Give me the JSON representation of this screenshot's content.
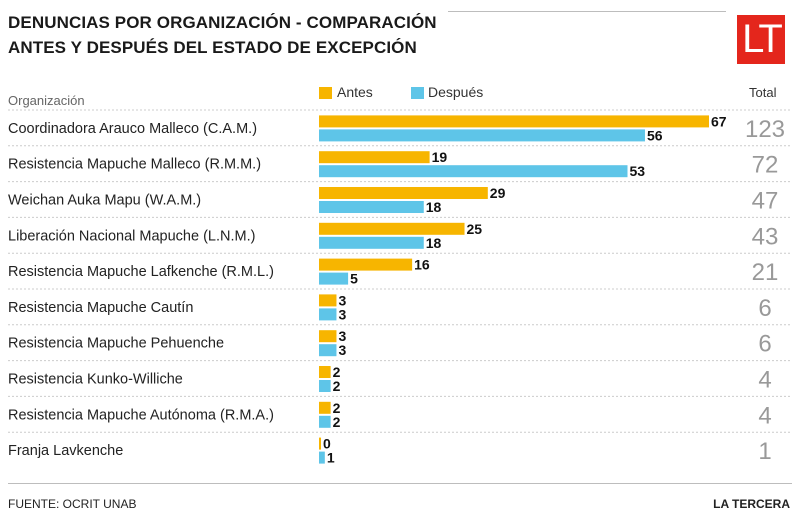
{
  "title_line1": "DENUNCIAS POR ORGANIZACIÓN - COMPARACIÓN",
  "title_line2": "ANTES Y DESPUÉS DEL ESTADO DE EXCEPCIÓN",
  "logo_text": "LT",
  "source": "FUENTE: OCRIT UNAB",
  "brand": "LA TERCERA",
  "colors": {
    "antes": "#f7b500",
    "despues": "#5ec5e8",
    "logo": "#e4261c",
    "total_text": "#999999",
    "grid": "#cccccc"
  },
  "chart_data": {
    "type": "bar",
    "orientation": "horizontal",
    "category_header": "Organización",
    "total_header": "Total",
    "categories": [
      "Coordinadora Arauco Malleco (C.A.M.)",
      "Resistencia Mapuche Malleco (R.M.M.)",
      "Weichan Auka Mapu (W.A.M.)",
      "Liberación Nacional Mapuche (L.N.M.)",
      "Resistencia Mapuche Lafkenche (R.M.L.)",
      "Resistencia Mapuche Cautín",
      "Resistencia Mapuche Pehuenche",
      "Resistencia Kunko-Williche",
      "Resistencia Mapuche Autónoma (R.M.A.)",
      "Franja Lavkenche"
    ],
    "series": [
      {
        "name": "Antes",
        "values": [
          67,
          19,
          29,
          25,
          16,
          3,
          3,
          2,
          2,
          0
        ]
      },
      {
        "name": "Después",
        "values": [
          56,
          53,
          18,
          18,
          5,
          3,
          3,
          2,
          2,
          1
        ]
      }
    ],
    "totals": [
      123,
      72,
      47,
      43,
      21,
      6,
      6,
      4,
      4,
      1
    ],
    "xlim": [
      0,
      67
    ],
    "legend_position": "top",
    "data_labels": true,
    "grid": false
  }
}
